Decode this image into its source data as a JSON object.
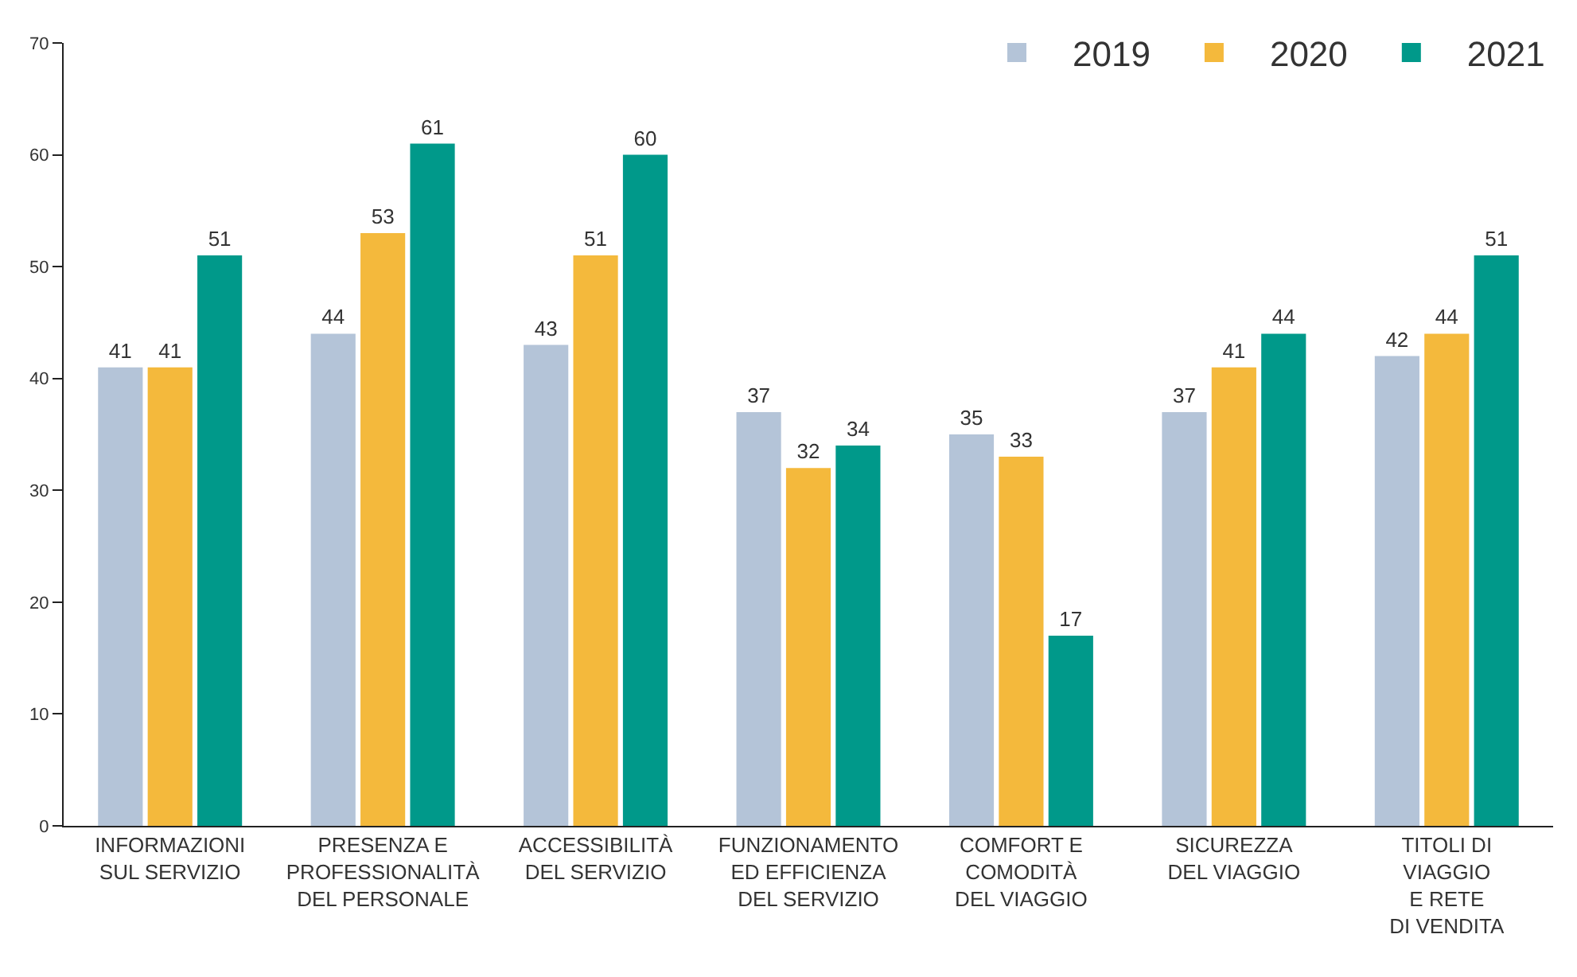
{
  "chart_data": {
    "type": "bar",
    "categories": [
      "INFORMAZIONI\nSUL SERVIZIO",
      "PRESENZA E\nPROFESSIONALITÀ\nDEL PERSONALE",
      "ACCESSIBILITÀ\nDEL SERVIZIO",
      "FUNZIONAMENTO\nED EFFICIENZA\nDEL SERVIZIO",
      "COMFORT E\nCOMODITÀ\nDEL VIAGGIO",
      "SICUREZZA\nDEL VIAGGIO",
      "TITOLI DI\nVIAGGIO\nE RETE\nDI VENDITA"
    ],
    "series": [
      {
        "name": "2019",
        "color": "#b4c4d8",
        "values": [
          41,
          44,
          43,
          37,
          35,
          37,
          42
        ]
      },
      {
        "name": "2020",
        "color": "#f4b93c",
        "values": [
          41,
          53,
          51,
          32,
          33,
          41,
          44
        ]
      },
      {
        "name": "2021",
        "color": "#00998a",
        "values": [
          51,
          61,
          60,
          34,
          17,
          44,
          51
        ]
      }
    ],
    "ylim": [
      0,
      70
    ],
    "yticks": [
      0,
      10,
      20,
      30,
      40,
      50,
      60,
      70
    ],
    "data_labels": true,
    "legend": "top right"
  }
}
